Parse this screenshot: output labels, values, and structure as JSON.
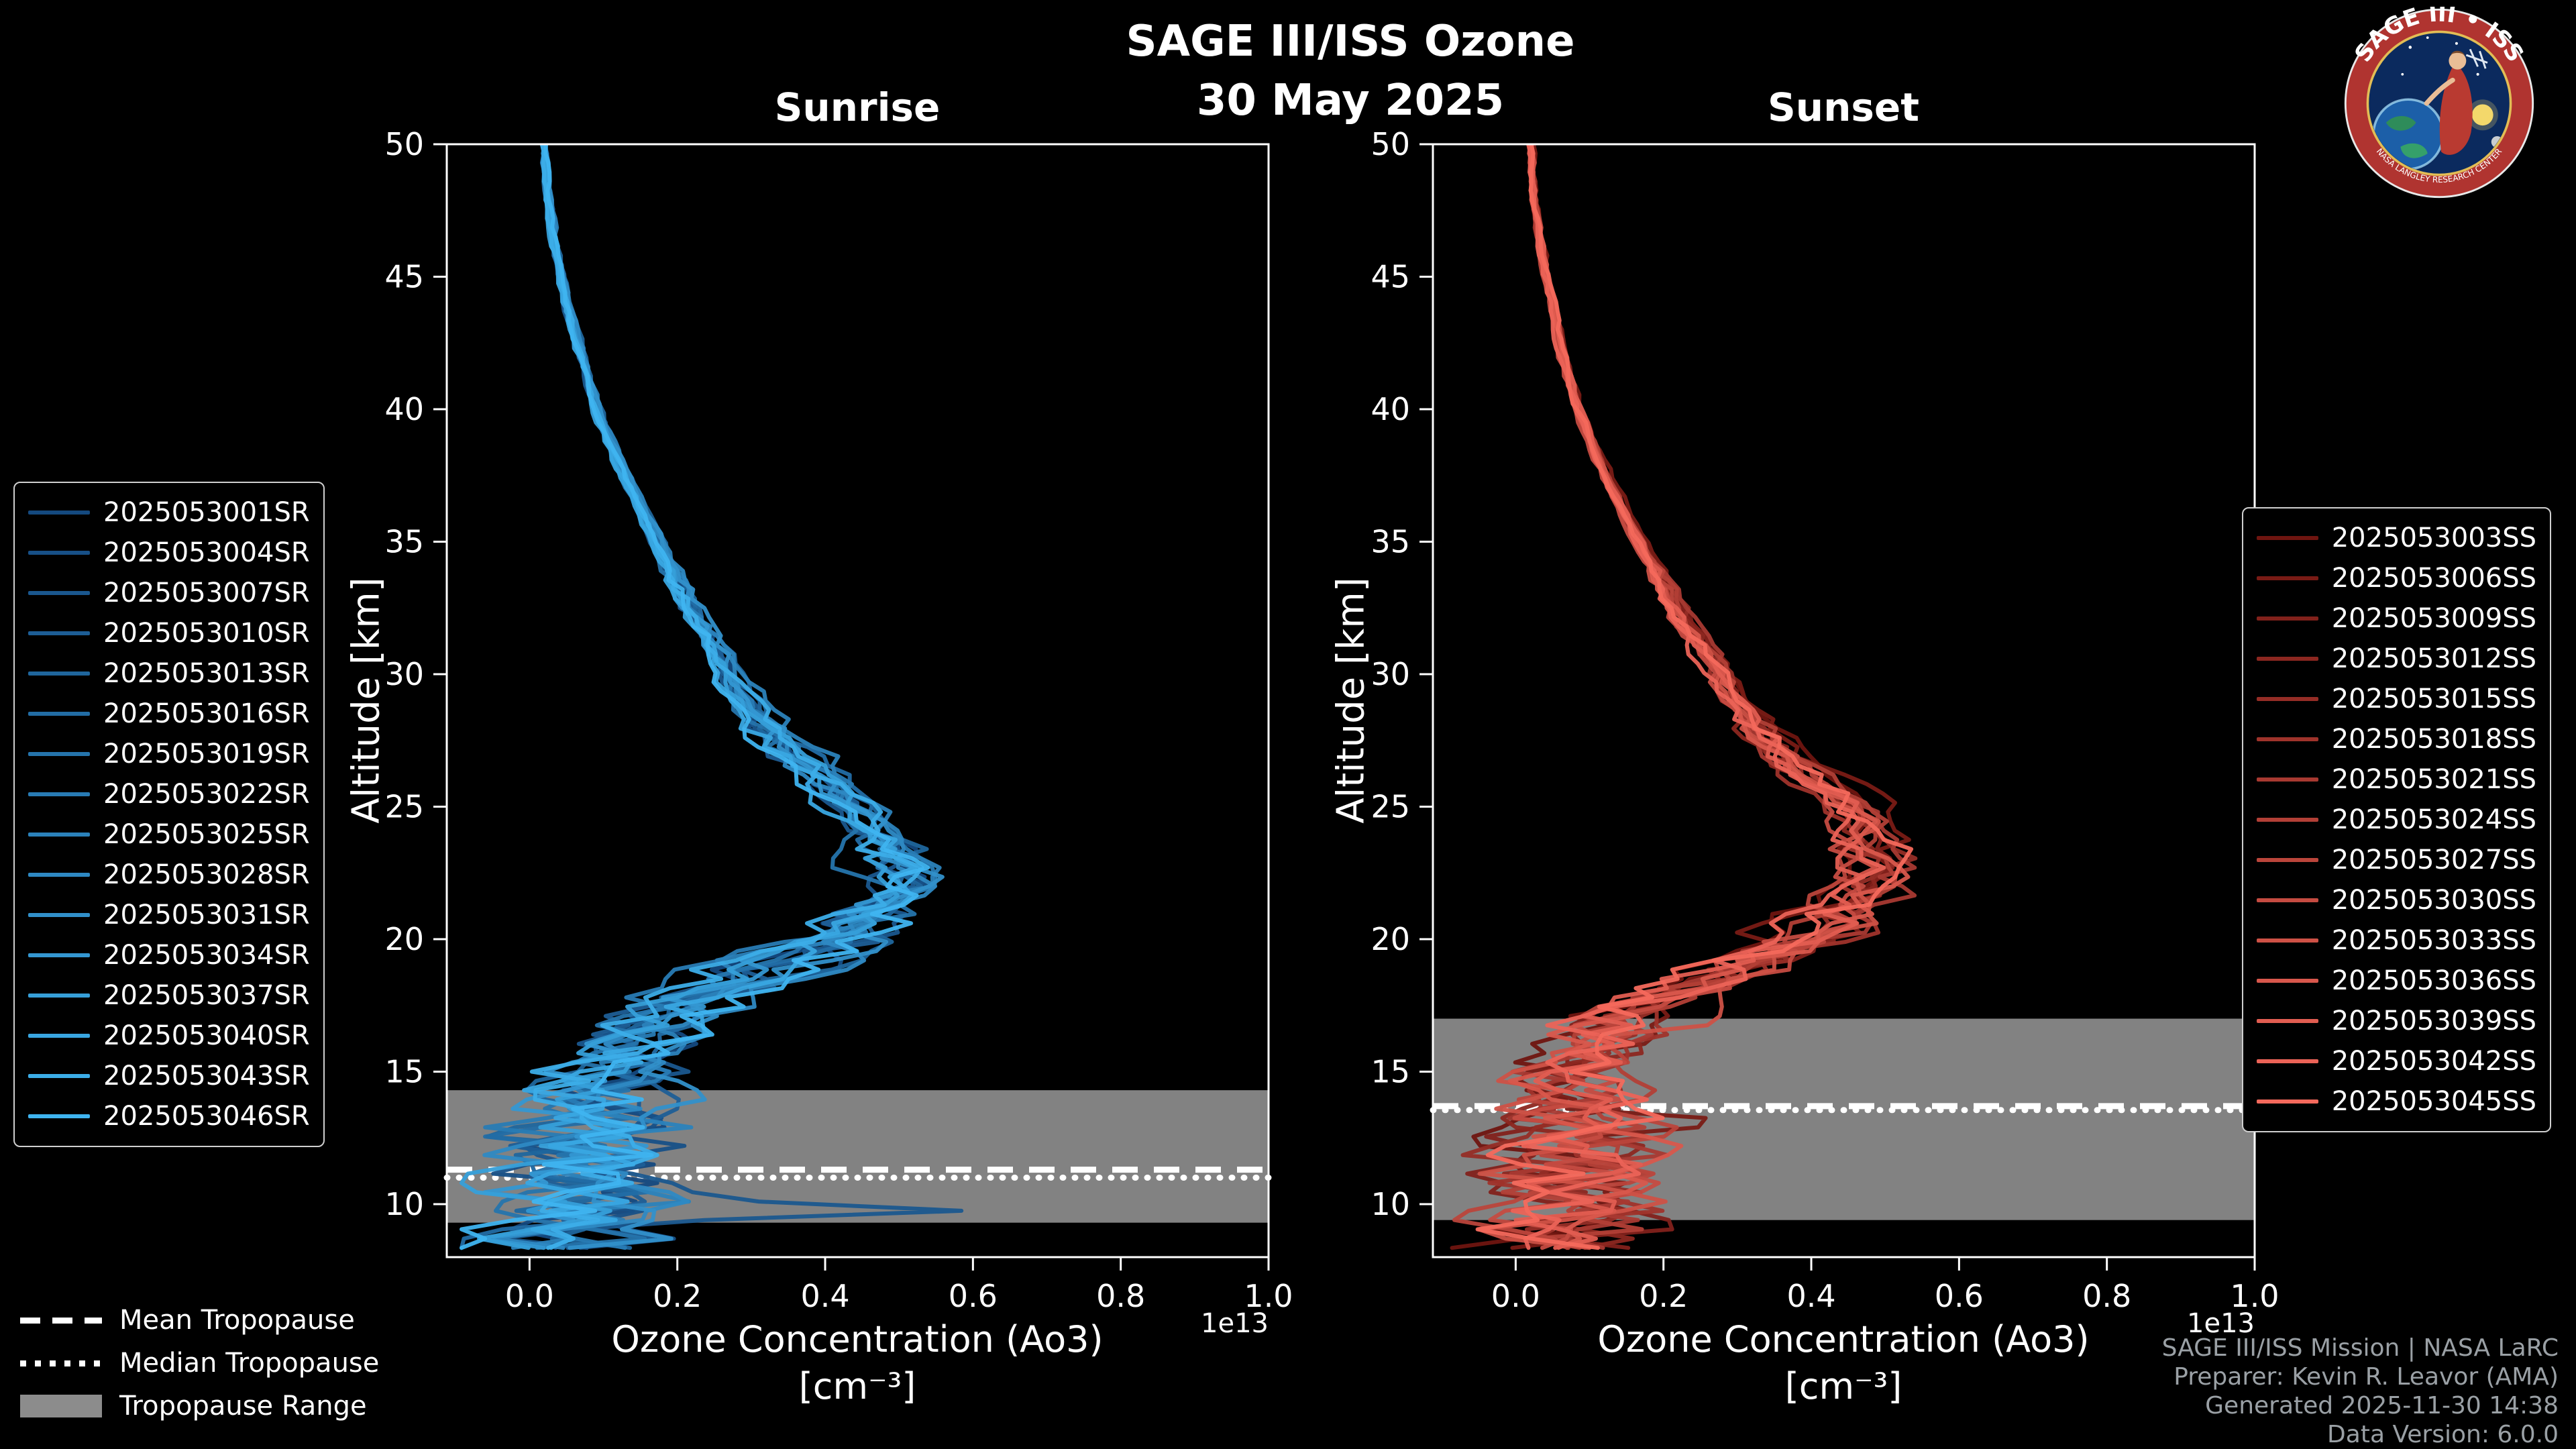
{
  "header": {
    "title": "SAGE III/ISS Ozone",
    "date": "30 May 2025"
  },
  "logo": {
    "ring_text_top": "SAGE III • ISS",
    "ring_text_bottom": "NASA LANGLEY RESEARCH CENTER",
    "ring_color": "#b03430",
    "field_color": "#0b2a5e"
  },
  "legend": {
    "mean": "Mean Tropopause",
    "median": "Median Tropopause",
    "range": "Tropopause Range",
    "range_color": "#8c8c8c"
  },
  "footer": {
    "lines": [
      "SAGE III/ISS Mission | NASA LaRC",
      "Preparer: Kevin R. Leavor (AMA)",
      "Generated 2025-11-30 14:38",
      "Data Version: 6.0.0"
    ]
  },
  "chart_data": [
    {
      "id": "sunrise",
      "type": "line",
      "title": "Sunrise",
      "xlabel": "Ozone Concentration (Ao3)",
      "xlabel_unit": "[cm⁻³]",
      "ylabel": "Altitude [km]",
      "offset_text": "1e13",
      "xlim": [
        -0.112,
        1.0
      ],
      "ylim": [
        8,
        50
      ],
      "xticks": [
        0.0,
        0.2,
        0.4,
        0.6,
        0.8,
        1.0
      ],
      "yticks": [
        10,
        15,
        20,
        25,
        30,
        35,
        40,
        45,
        50
      ],
      "grid": false,
      "legend_position": "left",
      "series": [
        "2025053001SR",
        "2025053004SR",
        "2025053007SR",
        "2025053010SR",
        "2025053013SR",
        "2025053016SR",
        "2025053019SR",
        "2025053022SR",
        "2025053025SR",
        "2025053028SR",
        "2025053031SR",
        "2025053034SR",
        "2025053037SR",
        "2025053040SR",
        "2025053043SR",
        "2025053046SR"
      ],
      "color_range": [
        "#14497f",
        "#3fb4f0"
      ],
      "tropopause": {
        "mean_km": 11.3,
        "median_km": 11.0,
        "range_km": [
          9.3,
          14.3
        ]
      },
      "base_profile": {
        "altitude_km": [
          8.5,
          9,
          10,
          11,
          12,
          13,
          14,
          15,
          16,
          17,
          18,
          19,
          20,
          21,
          22,
          23,
          24,
          25,
          26,
          27,
          28,
          30,
          32,
          34,
          36,
          38,
          40,
          42,
          44,
          46,
          48,
          50
        ],
        "ozone_1e13": [
          0.04,
          0.05,
          0.07,
          0.07,
          0.08,
          0.09,
          0.09,
          0.11,
          0.14,
          0.18,
          0.25,
          0.33,
          0.42,
          0.47,
          0.5,
          0.49,
          0.47,
          0.44,
          0.4,
          0.36,
          0.32,
          0.27,
          0.23,
          0.19,
          0.155,
          0.12,
          0.09,
          0.07,
          0.05,
          0.035,
          0.025,
          0.02
        ]
      },
      "spike": {
        "series": 2,
        "alt_km": 9.8,
        "value": 0.45
      },
      "noise_seed": 11
    },
    {
      "id": "sunset",
      "type": "line",
      "title": "Sunset",
      "xlabel": "Ozone Concentration (Ao3)",
      "xlabel_unit": "[cm⁻³]",
      "ylabel": "Altitude [km]",
      "offset_text": "1e13",
      "xlim": [
        -0.112,
        1.0
      ],
      "ylim": [
        8,
        50
      ],
      "xticks": [
        0.0,
        0.2,
        0.4,
        0.6,
        0.8,
        1.0
      ],
      "yticks": [
        10,
        15,
        20,
        25,
        30,
        35,
        40,
        45,
        50
      ],
      "grid": false,
      "legend_position": "right",
      "series": [
        "2025053003SS",
        "2025053006SS",
        "2025053009SS",
        "2025053012SS",
        "2025053015SS",
        "2025053018SS",
        "2025053021SS",
        "2025053024SS",
        "2025053027SS",
        "2025053030SS",
        "2025053033SS",
        "2025053036SS",
        "2025053039SS",
        "2025053042SS",
        "2025053045SS"
      ],
      "color_range": [
        "#6f1510",
        "#f4695c"
      ],
      "tropopause": {
        "mean_km": 13.7,
        "median_km": 13.55,
        "range_km": [
          9.4,
          17.0
        ]
      },
      "base_profile": {
        "altitude_km": [
          8.5,
          9,
          10,
          11,
          12,
          13,
          14,
          15,
          16,
          17,
          18,
          19,
          20,
          21,
          22,
          23,
          24,
          25,
          26,
          27,
          28,
          30,
          32,
          34,
          36,
          38,
          40,
          42,
          44,
          46,
          48,
          50
        ],
        "ozone_1e13": [
          0.04,
          0.05,
          0.07,
          0.08,
          0.09,
          0.08,
          0.08,
          0.09,
          0.11,
          0.14,
          0.2,
          0.28,
          0.38,
          0.44,
          0.49,
          0.5,
          0.48,
          0.46,
          0.41,
          0.37,
          0.33,
          0.28,
          0.23,
          0.19,
          0.15,
          0.115,
          0.085,
          0.065,
          0.05,
          0.035,
          0.025,
          0.02
        ]
      },
      "spike": {
        "series": 1,
        "alt_km": 13.1,
        "value": 0.22
      },
      "noise_seed": 77
    }
  ]
}
